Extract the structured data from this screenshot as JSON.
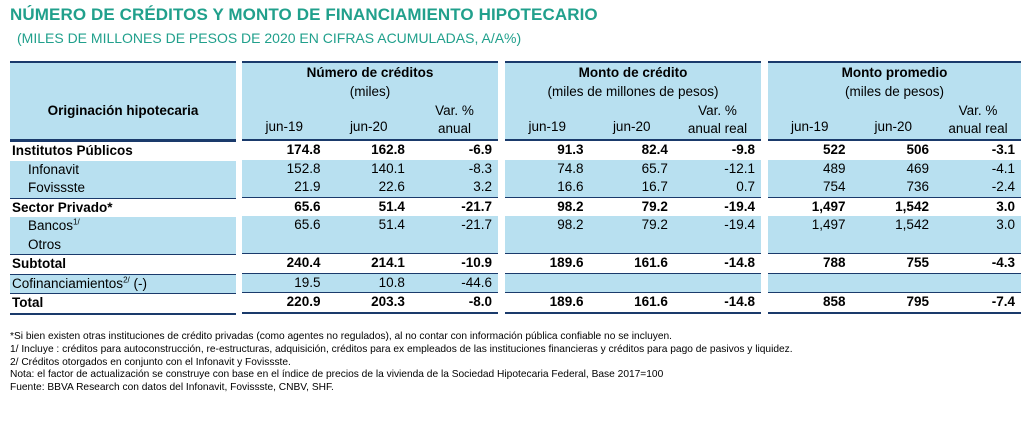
{
  "title": "NÚMERO DE CRÉDITOS Y MONTO DE FINANCIAMIENTO HIPOTECARIO",
  "subtitle": "(MILES DE MILLONES DE PESOS DE 2020 EN CIFRAS ACUMULADAS,  A/A%)",
  "header": {
    "row_label": "Originación hipotecaria",
    "groups": [
      {
        "title": "Número de créditos",
        "unit": "(miles)",
        "cols": [
          "jun-19",
          "jun-20",
          "Var. %",
          "anual"
        ]
      },
      {
        "title": "Monto de crédito",
        "unit": "(miles de millones de pesos)",
        "cols": [
          "jun-19",
          "jun-20",
          "Var. %",
          "anual real"
        ]
      },
      {
        "title": "Monto promedio",
        "unit": "(miles de pesos)",
        "cols": [
          "jun-19",
          "jun-20",
          "Var. %",
          "anual real"
        ]
      }
    ]
  },
  "rows": [
    {
      "label": "Institutos Públicos",
      "sup": "",
      "suffix": "",
      "bold": true,
      "indent": false,
      "g1": [
        "174.8",
        "162.8",
        "-6.9"
      ],
      "g2": [
        "91.3",
        "82.4",
        "-9.8"
      ],
      "g3": [
        "522",
        "506",
        "-3.1"
      ]
    },
    {
      "label": "Infonavit",
      "sup": "",
      "suffix": "",
      "bold": false,
      "indent": true,
      "g1": [
        "152.8",
        "140.1",
        "-8.3"
      ],
      "g2": [
        "74.8",
        "65.7",
        "-12.1"
      ],
      "g3": [
        "489",
        "469",
        "-4.1"
      ]
    },
    {
      "label": "Fovissste",
      "sup": "",
      "suffix": "",
      "bold": false,
      "indent": true,
      "g1": [
        "21.9",
        "22.6",
        "3.2"
      ],
      "g2": [
        "16.6",
        "16.7",
        "0.7"
      ],
      "g3": [
        "754",
        "736",
        "-2.4"
      ]
    },
    {
      "label": "Sector Privado*",
      "sup": "",
      "suffix": "",
      "bold": true,
      "indent": false,
      "g1": [
        "65.6",
        "51.4",
        "-21.7"
      ],
      "g2": [
        "98.2",
        "79.2",
        "-19.4"
      ],
      "g3": [
        "1,497",
        "1,542",
        "3.0"
      ]
    },
    {
      "label": "Bancos",
      "sup": "1/",
      "suffix": "",
      "bold": false,
      "indent": true,
      "g1": [
        "65.6",
        "51.4",
        "-21.7"
      ],
      "g2": [
        "98.2",
        "79.2",
        "-19.4"
      ],
      "g3": [
        "1,497",
        "1,542",
        "3.0"
      ]
    },
    {
      "label": "Otros",
      "sup": "",
      "suffix": "",
      "bold": false,
      "indent": true,
      "g1": [
        "",
        "",
        ""
      ],
      "g2": [
        "",
        "",
        ""
      ],
      "g3": [
        "",
        "",
        ""
      ]
    },
    {
      "label": "Subtotal",
      "sup": "",
      "suffix": "",
      "bold": true,
      "indent": false,
      "g1": [
        "240.4",
        "214.1",
        "-10.9"
      ],
      "g2": [
        "189.6",
        "161.6",
        "-14.8"
      ],
      "g3": [
        "788",
        "755",
        "-4.3"
      ]
    },
    {
      "label": "Cofinanciamientos",
      "sup": "2/",
      "suffix": " (-)",
      "bold": false,
      "indent": false,
      "g1": [
        "19.5",
        "10.8",
        "-44.6"
      ],
      "g2": [
        "",
        "",
        ""
      ],
      "g3": [
        "",
        "",
        ""
      ]
    },
    {
      "label": "Total",
      "sup": "",
      "suffix": "",
      "bold": true,
      "indent": false,
      "g1": [
        "220.9",
        "203.3",
        "-8.0"
      ],
      "g2": [
        "189.6",
        "161.6",
        "-14.8"
      ],
      "g3": [
        "858",
        "795",
        "-7.4"
      ]
    }
  ],
  "footnotes": [
    "*Si bien existen otras instituciones de crédito privadas (como agentes no regulados), al no contar con información pública confiable no se incluyen.",
    "1/ Incluye : créditos para autoconstrucción, re-estructuras, adquisición, créditos para ex empleados de las instituciones financieras y créditos para pago de pasivos y liquidez.",
    "2/ Créditos otorgados en conjunto con el Infonavit y Fovissste.",
    "Nota: el factor de actualización se construye con base en el índice de precios de la vivienda de la Sociedad Hipotecaria Federal, Base 2017=100",
    "Fuente: BBVA Research con datos del Infonavit, Fovissste, CNBV, SHF."
  ]
}
